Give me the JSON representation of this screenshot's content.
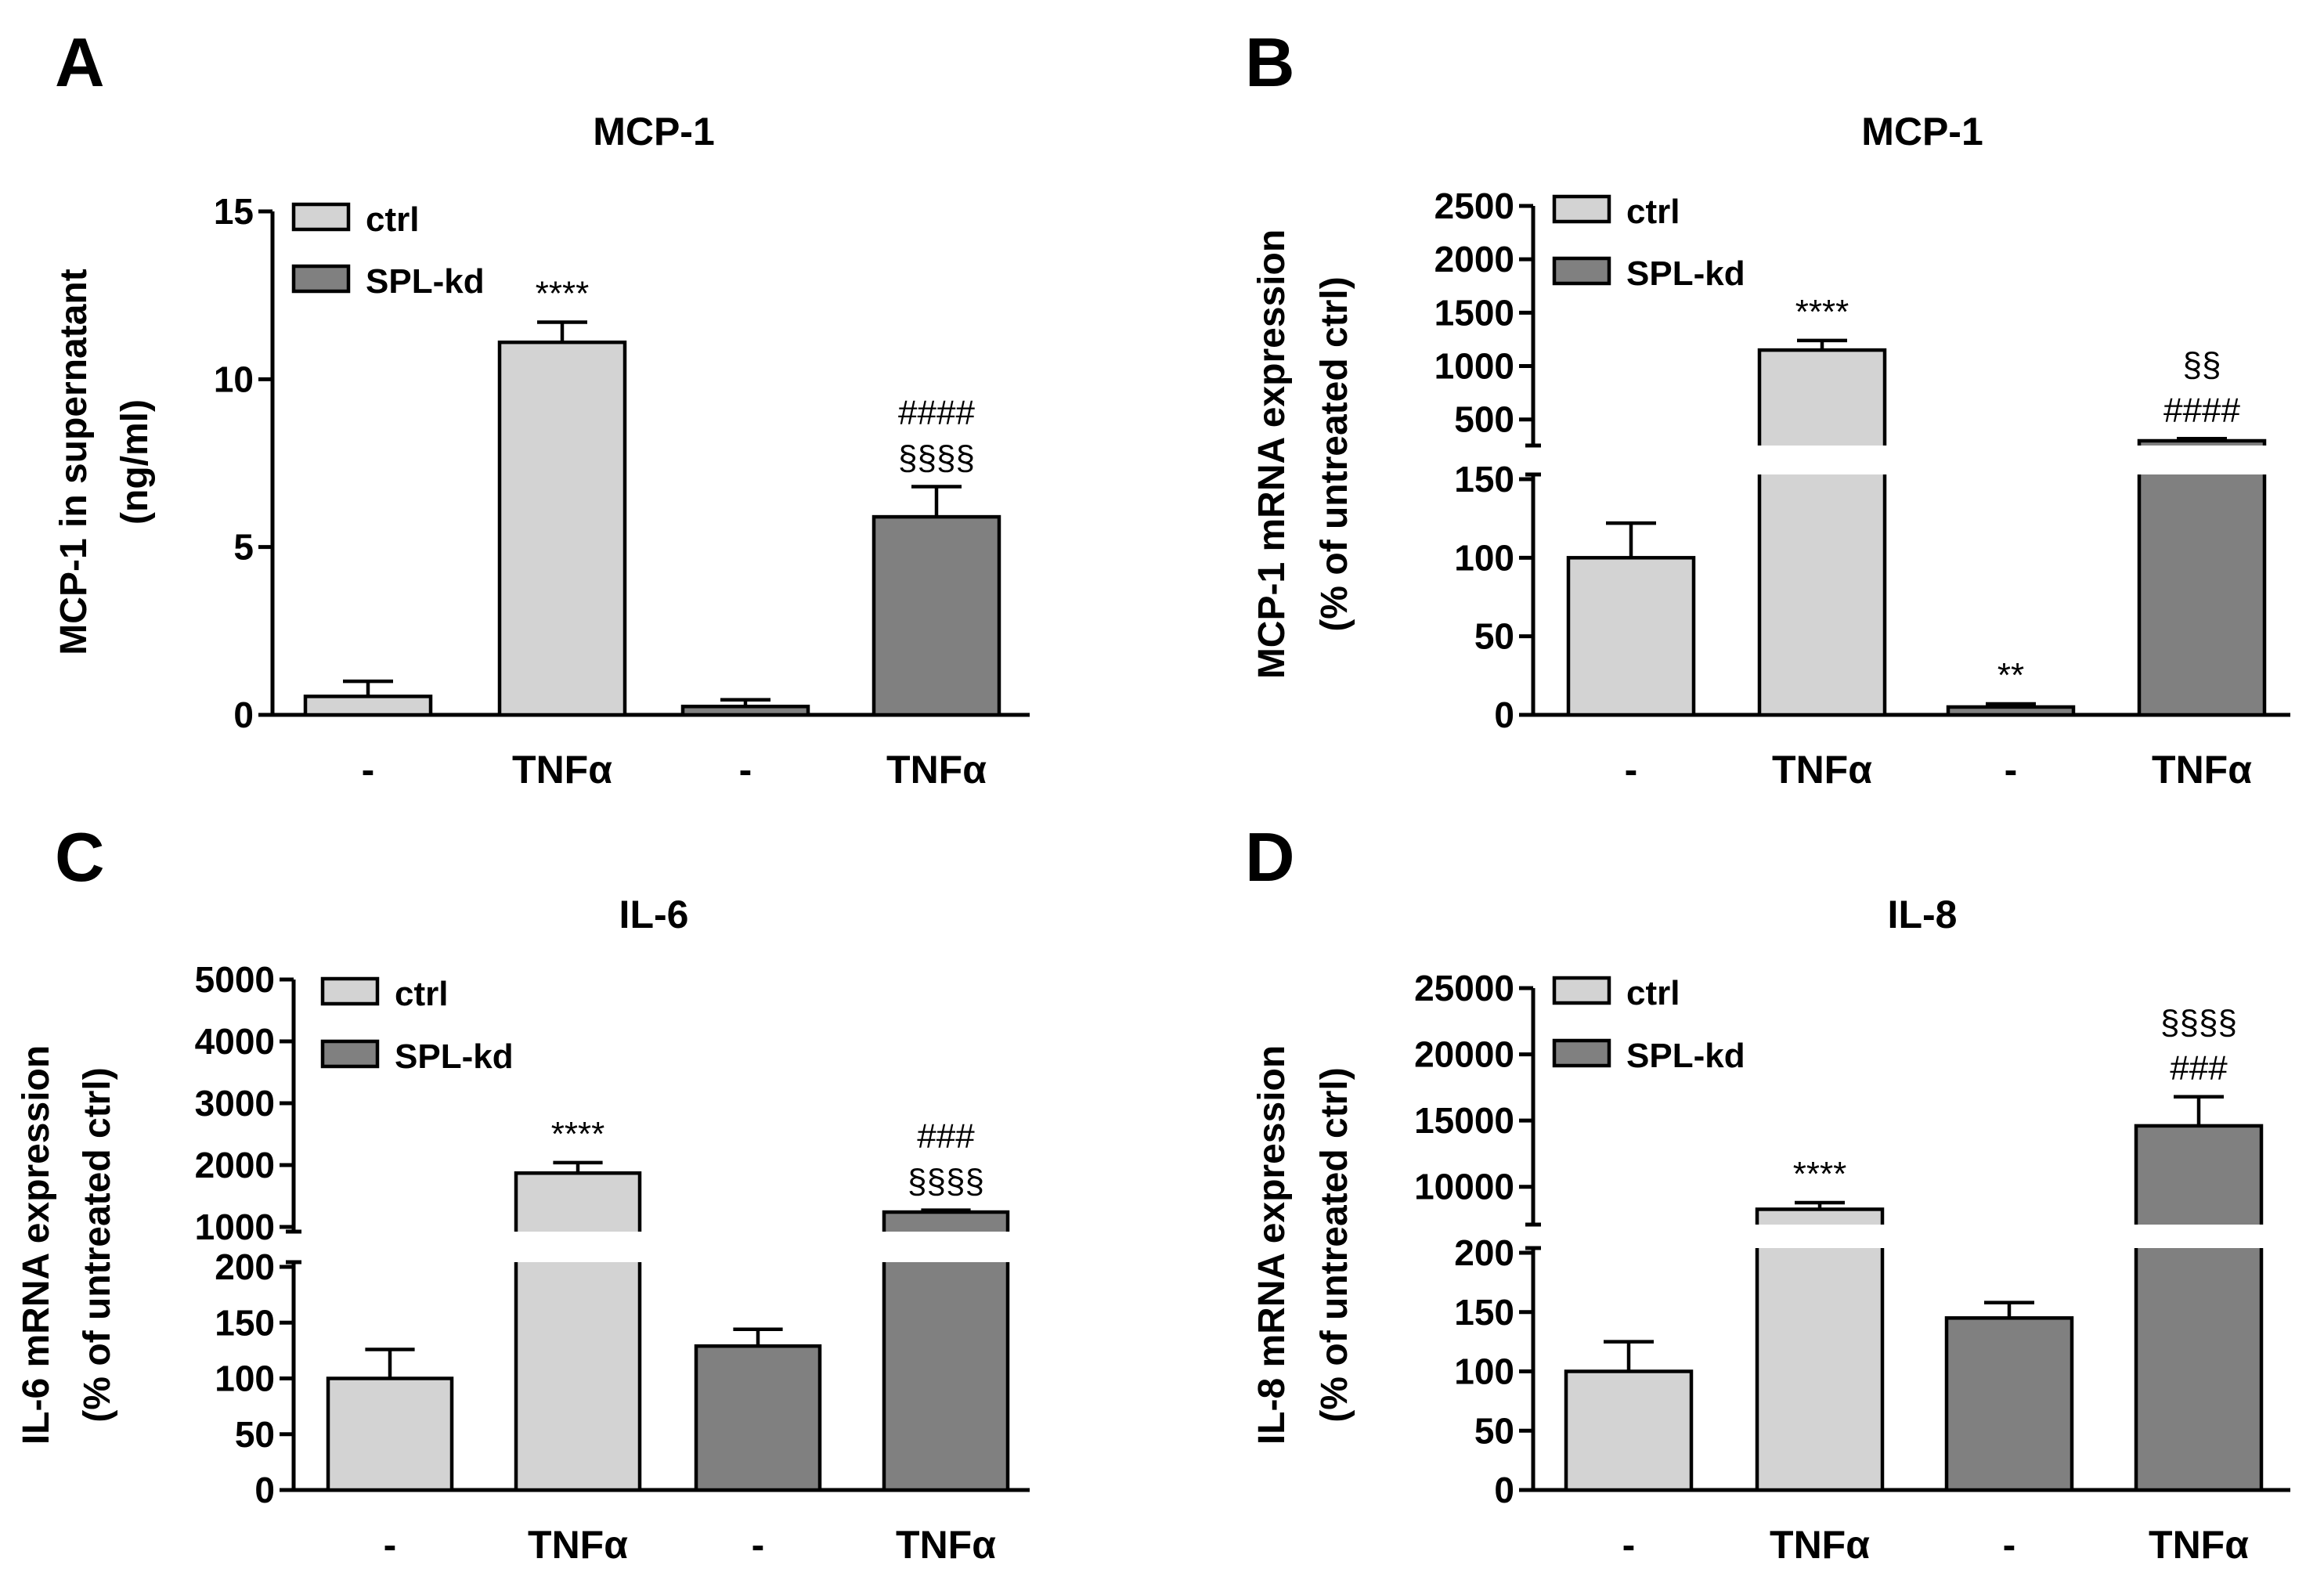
{
  "colors": {
    "ctrl": "#d3d3d3",
    "spl_kd": "#808080",
    "axis": "#000000"
  },
  "chart_data": [
    {
      "panel": "A",
      "type": "bar",
      "title": "MCP-1",
      "ylabel": [
        "MCP-1 in supernatant",
        "(ng/ml)"
      ],
      "categories": [
        "-",
        "TNFα",
        "-",
        "TNFα"
      ],
      "legend": [
        "ctrl",
        "SPL-kd"
      ],
      "bar_series": [
        "ctrl",
        "ctrl",
        "SPL-kd",
        "SPL-kd"
      ],
      "values": [
        0.55,
        11.1,
        0.25,
        5.9
      ],
      "errors": [
        0.45,
        0.6,
        0.2,
        0.9
      ],
      "yticks": [
        0,
        5,
        10,
        15
      ],
      "ylim": [
        0,
        15
      ],
      "axis_break": null,
      "annotations": [
        {
          "bar": 1,
          "lines": [
            "****"
          ]
        },
        {
          "bar": 3,
          "lines": [
            "####",
            "§§§§"
          ]
        }
      ]
    },
    {
      "panel": "B",
      "type": "bar",
      "title": "MCP-1",
      "ylabel": [
        "MCP-1 mRNA expression",
        "(% of untreated ctrl)"
      ],
      "categories": [
        "-",
        "TNFα",
        "-",
        "TNFα"
      ],
      "legend": [
        "ctrl",
        "SPL-kd"
      ],
      "bar_series": [
        "ctrl",
        "ctrl",
        "SPL-kd",
        "SPL-kd"
      ],
      "values": [
        100,
        1150,
        5,
        300
      ],
      "errors": [
        22,
        90,
        2,
        20
      ],
      "yticks_lower": [
        0,
        50,
        100,
        150
      ],
      "yticks_upper": [
        500,
        1000,
        1500,
        2000,
        2500
      ],
      "axis_break": {
        "lower_max": 150,
        "upper_min": 300,
        "upper_max": 2500
      },
      "annotations": [
        {
          "bar": 1,
          "lines": [
            "****"
          ]
        },
        {
          "bar": 2,
          "lines": [
            "**"
          ]
        },
        {
          "bar": 3,
          "lines": [
            "§§",
            "####"
          ]
        }
      ]
    },
    {
      "panel": "C",
      "type": "bar",
      "title": "IL-6",
      "ylabel": [
        "IL-6 mRNA expression",
        "(% of untreated ctrl)"
      ],
      "categories": [
        "-",
        "TNFα",
        "-",
        "TNFα"
      ],
      "legend": [
        "ctrl",
        "SPL-kd"
      ],
      "bar_series": [
        "ctrl",
        "ctrl",
        "SPL-kd",
        "SPL-kd"
      ],
      "values": [
        100,
        1870,
        129,
        1240
      ],
      "errors": [
        26,
        170,
        15,
        30
      ],
      "yticks_lower": [
        0,
        50,
        100,
        150,
        200
      ],
      "yticks_upper": [
        1000,
        2000,
        3000,
        4000,
        5000
      ],
      "axis_break": {
        "lower_max": 200,
        "upper_min": 1000,
        "upper_max": 5000
      },
      "annotations": [
        {
          "bar": 1,
          "lines": [
            "****"
          ]
        },
        {
          "bar": 3,
          "lines": [
            "###",
            "§§§§"
          ]
        }
      ]
    },
    {
      "panel": "D",
      "type": "bar",
      "title": "IL-8",
      "ylabel": [
        "IL-8 mRNA expression",
        "(% of untreated ctrl)"
      ],
      "categories": [
        "-",
        "TNFα",
        "-",
        "TNFα"
      ],
      "legend": [
        "ctrl",
        "SPL-kd"
      ],
      "bar_series": [
        "ctrl",
        "ctrl",
        "SPL-kd",
        "SPL-kd"
      ],
      "values": [
        100,
        8300,
        145,
        14600
      ],
      "errors": [
        25,
        500,
        13,
        2200
      ],
      "yticks_lower": [
        0,
        50,
        100,
        150,
        200
      ],
      "yticks_upper": [
        10000,
        15000,
        20000,
        25000
      ],
      "axis_break": {
        "lower_max": 200,
        "upper_min": 7500,
        "upper_max": 25000
      },
      "annotations": [
        {
          "bar": 1,
          "lines": [
            "****"
          ]
        },
        {
          "bar": 3,
          "lines": [
            "§§§§",
            "###"
          ]
        }
      ]
    }
  ]
}
